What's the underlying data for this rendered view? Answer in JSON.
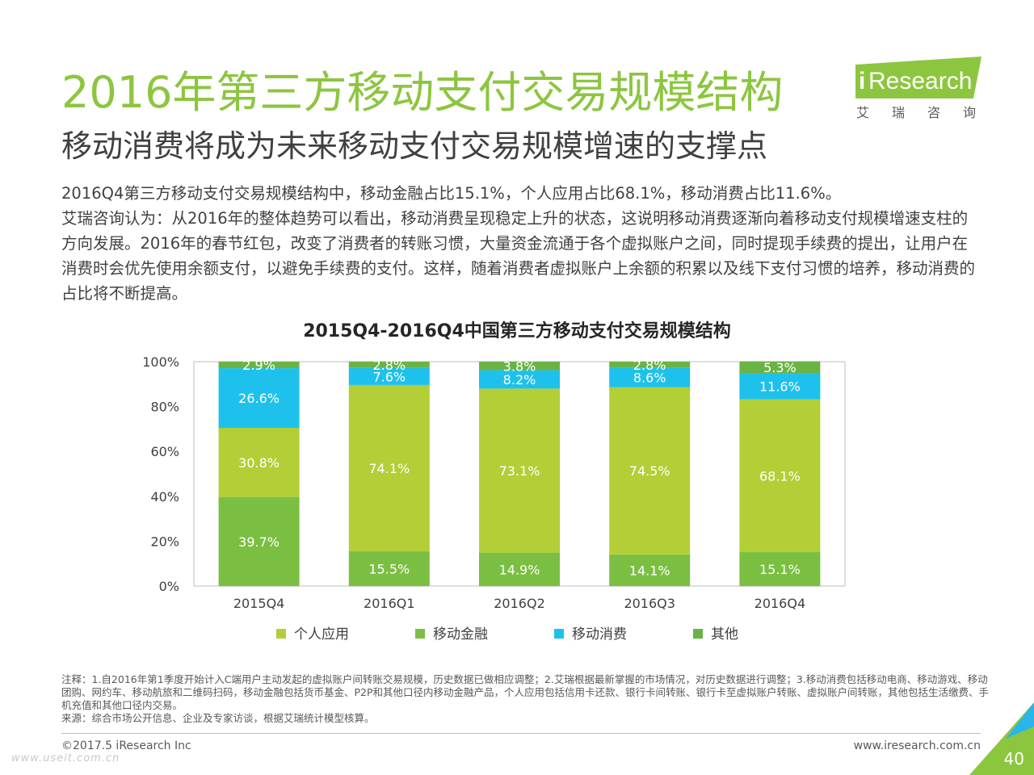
{
  "header": {
    "title": "2016年第三方移动支付交易规模结构",
    "subtitle": "移动消费将成为未来移动支付交易规模增速的支撑点"
  },
  "logo": {
    "brand": "iResearch",
    "brand_i": "i",
    "brand_rest": "Research",
    "chinese": "艾瑞咨询",
    "color": "#8cc63f"
  },
  "body": {
    "para1": "2016Q4第三方移动支付交易规模结构中，移动金融占比15.1%，个人应用占比68.1%，移动消费占比11.6%。",
    "para2": "艾瑞咨询认为：从2016年的整体趋势可以看出，移动消费呈现稳定上升的状态，这说明移动消费逐渐向着移动支付规模增速支柱的方向发展。2016年的春节红包，改变了消费者的转账习惯，大量资金流通于各个虚拟账户之间，同时提现手续费的提出，让用户在消费时会优先使用余额支付，以避免手续费的支付。这样，随着消费者虚拟账户上余额的积累以及线下支付习惯的培养，移动消费的占比将不断提高。"
  },
  "chart_data": {
    "type": "bar",
    "stacked": true,
    "title": "2015Q4-2016Q4中国第三方移动支付交易规模结构",
    "categories": [
      "2015Q4",
      "2016Q1",
      "2016Q2",
      "2016Q3",
      "2016Q4"
    ],
    "series": [
      {
        "name": "其他",
        "values": [
          2.9,
          2.8,
          3.8,
          2.8,
          5.3
        ],
        "color": "#6ab344"
      },
      {
        "name": "移动消费",
        "values": [
          26.6,
          7.6,
          8.2,
          8.6,
          11.6
        ],
        "color": "#1ec1ec"
      },
      {
        "name": "个人应用",
        "values": [
          30.8,
          74.1,
          73.1,
          74.5,
          68.1
        ],
        "color": "#b2cf37"
      },
      {
        "name": "移动金融",
        "values": [
          39.7,
          15.5,
          14.9,
          14.1,
          15.1
        ],
        "color": "#7bbf42"
      }
    ],
    "stack_order_bottom_to_top": [
      "移动金融",
      "个人应用",
      "移动消费",
      "其他"
    ],
    "legend_order": [
      "个人应用",
      "移动金融",
      "移动消费",
      "其他"
    ],
    "ylim": [
      0,
      100
    ],
    "yticks": [
      "0%",
      "20%",
      "40%",
      "60%",
      "80%",
      "100%"
    ],
    "value_suffix": "%",
    "legend_position": "bottom",
    "grid": false
  },
  "footer": {
    "note1": "注释：1.自2016年第1季度开始计入C端用户主动发起的虚拟账户间转账交易规模，历史数据已做相应调整；2.艾瑞根据最新掌握的市场情况，对历史数据进行调整；3.移动消费包括移动电商、移动游戏、移动团购、网约车、移动航旅和二维码扫码，移动金融包括货币基金、P2P和其他口径内移动金融产品，个人应用包括信用卡还款、银行卡间转账、银行卡至虚拟账户转账、虚拟账户间转账，其他包括生活缴费、手机充值和其他口径内交易。",
    "note2": "来源：综合市场公开信息、企业及专家访谈，根据艾瑞统计模型核算。",
    "copyright": "©2017.5 iResearch Inc",
    "website": "www.iresearch.com.cn",
    "watermark": "www.useit.com.cn",
    "page_number": "40"
  }
}
